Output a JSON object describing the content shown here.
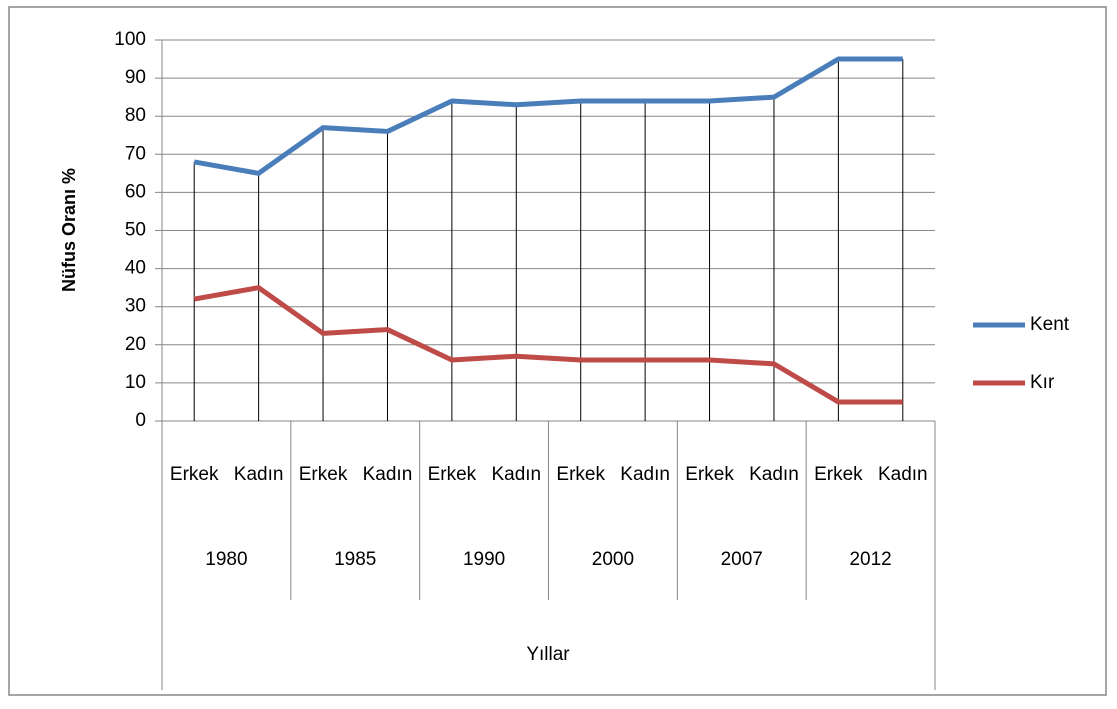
{
  "chart_data": {
    "type": "line",
    "y_label": "Nüfus Oranı %",
    "x_label": "Yıllar",
    "categories": [
      "Erkek",
      "Kadın",
      "Erkek",
      "Kadın",
      "Erkek",
      "Kadın",
      "Erkek",
      "Kadın",
      "Erkek",
      "Kadın",
      "Erkek",
      "Kadın"
    ],
    "groups": [
      "1980",
      "1985",
      "1990",
      "2000",
      "2007",
      "2012"
    ],
    "series": [
      {
        "name": "Kent",
        "color": "#4a7ebb",
        "values": [
          68,
          65,
          77,
          76,
          84,
          83,
          84,
          84,
          84,
          85,
          95,
          95
        ]
      },
      {
        "name": "Kır",
        "color": "#be4b48",
        "values": [
          32,
          35,
          23,
          24,
          16,
          17,
          16,
          16,
          16,
          15,
          5,
          5
        ]
      }
    ],
    "ylim": [
      0,
      100
    ],
    "yticks": [
      0,
      10,
      20,
      30,
      40,
      50,
      60,
      70,
      80,
      90,
      100
    ],
    "grid": true,
    "legend": "right"
  }
}
